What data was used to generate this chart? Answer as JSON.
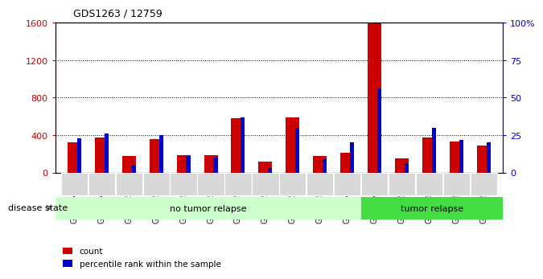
{
  "title": "GDS1263 / 12759",
  "samples": [
    "GSM50474",
    "GSM50496",
    "GSM50504",
    "GSM50505",
    "GSM50506",
    "GSM50507",
    "GSM50508",
    "GSM50509",
    "GSM50511",
    "GSM50512",
    "GSM50473",
    "GSM50475",
    "GSM50510",
    "GSM50513",
    "GSM50514",
    "GSM50515"
  ],
  "counts": [
    320,
    370,
    175,
    360,
    185,
    185,
    580,
    120,
    590,
    175,
    210,
    1590,
    155,
    370,
    330,
    290
  ],
  "percentiles": [
    23,
    26,
    5,
    25,
    11,
    10,
    37,
    3,
    30,
    9,
    20,
    56,
    6,
    30,
    22,
    20
  ],
  "no_relapse_count": 11,
  "group_labels": [
    "no tumor relapse",
    "tumor relapse"
  ],
  "left_ylim": [
    0,
    1600
  ],
  "right_ylim": [
    0,
    100
  ],
  "left_yticks": [
    0,
    400,
    800,
    1200,
    1600
  ],
  "right_yticks": [
    0,
    25,
    50,
    75,
    100
  ],
  "right_yticklabels": [
    "0",
    "25",
    "50",
    "75",
    "100%"
  ],
  "left_color": "#cc0000",
  "right_color": "#0000cc",
  "red_bar_width": 0.5,
  "blue_bar_width": 0.15,
  "bg_color": "#d8d8d8",
  "no_relapse_color": "#ccffcc",
  "relapse_color": "#44dd44",
  "disease_state_label": "disease state",
  "count_label": "count",
  "percentile_label": "percentile rank within the sample"
}
